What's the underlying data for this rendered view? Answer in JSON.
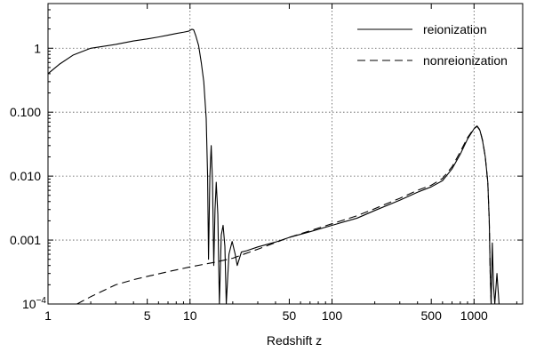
{
  "chart_data": {
    "type": "line",
    "title": "",
    "xlabel": "Redshift z",
    "ylabel": "",
    "x_scale": "log",
    "y_scale": "log",
    "xlim": [
      1,
      2200
    ],
    "ylim": [
      0.0001,
      5
    ],
    "grid": true,
    "grid_style": "dotted",
    "legend_position": "top-right",
    "x_ticks": [
      {
        "value": 1,
        "label": "1"
      },
      {
        "value": 5,
        "label": "5"
      },
      {
        "value": 10,
        "label": "10"
      },
      {
        "value": 50,
        "label": "50"
      },
      {
        "value": 100,
        "label": "100"
      },
      {
        "value": 500,
        "label": "500"
      },
      {
        "value": 1000,
        "label": "1000"
      }
    ],
    "x_grid": [
      10,
      100,
      1000
    ],
    "y_ticks": [
      {
        "value": 1,
        "label": "1"
      },
      {
        "value": 0.1,
        "label": "0.100"
      },
      {
        "value": 0.01,
        "label": "0.010"
      },
      {
        "value": 0.001,
        "label": "0.001"
      },
      {
        "value": 0.0001,
        "label": "10",
        "sup": "−4"
      }
    ],
    "series": [
      {
        "name": "reionization",
        "style": "solid",
        "color": "#000000",
        "points": [
          [
            1,
            0.4
          ],
          [
            1.2,
            0.56
          ],
          [
            1.5,
            0.78
          ],
          [
            2,
            1.0
          ],
          [
            3,
            1.15
          ],
          [
            4,
            1.3
          ],
          [
            5,
            1.4
          ],
          [
            6,
            1.5
          ],
          [
            7,
            1.6
          ],
          [
            8,
            1.7
          ],
          [
            9,
            1.78
          ],
          [
            9.8,
            1.85
          ],
          [
            10.3,
            1.98
          ],
          [
            10.6,
            1.95
          ],
          [
            11,
            1.55
          ],
          [
            11.5,
            1.1
          ],
          [
            12,
            0.6
          ],
          [
            12.5,
            0.3
          ],
          [
            13,
            0.08
          ],
          [
            13.3,
            0.01
          ],
          [
            13.5,
            0.0005
          ],
          [
            13.8,
            0.01
          ],
          [
            14.1,
            0.03
          ],
          [
            14.4,
            0.008
          ],
          [
            14.7,
            0.0004
          ],
          [
            15.0,
            0.003
          ],
          [
            15.3,
            0.008
          ],
          [
            15.7,
            0.0025
          ],
          [
            16.1,
            0.0001
          ],
          [
            16.6,
            0.0012
          ],
          [
            17.1,
            0.0017
          ],
          [
            17.6,
            0.0008
          ],
          [
            18,
            0.0001
          ],
          [
            18.8,
            0.0006
          ],
          [
            19.8,
            0.00095
          ],
          [
            20.8,
            0.0006
          ],
          [
            21.5,
            0.0004
          ],
          [
            23,
            0.00065
          ],
          [
            25,
            0.00068
          ],
          [
            30,
            0.00078
          ],
          [
            40,
            0.00093
          ],
          [
            50,
            0.0011
          ],
          [
            70,
            0.00135
          ],
          [
            100,
            0.0017
          ],
          [
            150,
            0.0022
          ],
          [
            200,
            0.0029
          ],
          [
            300,
            0.0042
          ],
          [
            400,
            0.0056
          ],
          [
            500,
            0.0068
          ],
          [
            600,
            0.0085
          ],
          [
            700,
            0.013
          ],
          [
            800,
            0.022
          ],
          [
            900,
            0.038
          ],
          [
            1000,
            0.055
          ],
          [
            1050,
            0.06
          ],
          [
            1100,
            0.052
          ],
          [
            1150,
            0.035
          ],
          [
            1200,
            0.02
          ],
          [
            1250,
            0.008
          ],
          [
            1280,
            0.002
          ],
          [
            1300,
            0.0003
          ],
          [
            1320,
            0.0001
          ],
          [
            1345,
            0.0009
          ],
          [
            1370,
            0.0002
          ],
          [
            1400,
            0.0001
          ],
          [
            1450,
            0.0003
          ],
          [
            1500,
            0.0001
          ]
        ]
      },
      {
        "name": "nonreionization",
        "style": "dashed",
        "color": "#000000",
        "points": [
          [
            1.6,
            0.0001
          ],
          [
            2,
            0.00013
          ],
          [
            3,
            0.0002
          ],
          [
            4,
            0.00024
          ],
          [
            5,
            0.00027
          ],
          [
            7,
            0.00032
          ],
          [
            10,
            0.00038
          ],
          [
            15,
            0.00045
          ],
          [
            20,
            0.00052
          ],
          [
            30,
            0.00072
          ],
          [
            50,
            0.0011
          ],
          [
            70,
            0.0014
          ],
          [
            100,
            0.0018
          ],
          [
            150,
            0.0024
          ],
          [
            200,
            0.0031
          ],
          [
            300,
            0.0045
          ],
          [
            400,
            0.006
          ],
          [
            500,
            0.0072
          ],
          [
            600,
            0.0092
          ],
          [
            700,
            0.014
          ],
          [
            800,
            0.024
          ],
          [
            900,
            0.04
          ],
          [
            1000,
            0.056
          ],
          [
            1050,
            0.061
          ],
          [
            1100,
            0.053
          ],
          [
            1150,
            0.036
          ],
          [
            1200,
            0.02
          ],
          [
            1250,
            0.008
          ],
          [
            1280,
            0.002
          ],
          [
            1300,
            0.0003
          ],
          [
            1320,
            0.0001
          ]
        ]
      }
    ]
  }
}
